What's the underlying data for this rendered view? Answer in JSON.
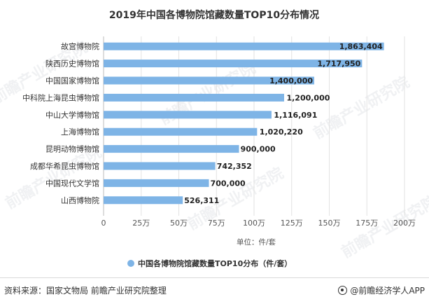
{
  "chart_data": {
    "type": "bar",
    "orientation": "horizontal",
    "title": "2019年中国各博物院馆藏数量TOP10分布情况",
    "categories": [
      "故宫博物院",
      "陕西历史博物馆",
      "中国国家博物馆",
      "中科院上海昆虫博物馆",
      "中山大学博物馆",
      "上海博物馆",
      "昆明动物博物馆",
      "成都华希昆虫博物馆",
      "中国现代文学馆",
      "山西博物院"
    ],
    "values": [
      1863404,
      1717950,
      1400000,
      1200000,
      1116091,
      1020220,
      900000,
      742352,
      700000,
      526311
    ],
    "value_labels": [
      "1,863,404",
      "1,717,950",
      "1,400,000",
      "1,200,000",
      "1,116,091",
      "1,020,220",
      "900,000",
      "742,352",
      "700,000",
      "526,311"
    ],
    "xlim": [
      0,
      2000000
    ],
    "x_ticks": [
      0,
      250000,
      500000,
      750000,
      1000000,
      1250000,
      1500000,
      1750000,
      2000000
    ],
    "x_tick_labels": [
      "0",
      "25万",
      "50万",
      "75万",
      "100万",
      "125万",
      "150万",
      "175万",
      "200万"
    ],
    "xlabel": "单位：件/套",
    "legend": {
      "label": "中国各博物院馆藏数量TOP10分布（件/套）",
      "position": "bottom",
      "color": "#7eb4e6"
    },
    "bar_color": "#7eb4e6",
    "grid": true
  },
  "footer": {
    "source": "资料来源：国家文物局 前瞻产业研究院整理",
    "brand": "@前瞻经济学人APP"
  },
  "watermark": {
    "text": "前瞻产业研究院"
  }
}
